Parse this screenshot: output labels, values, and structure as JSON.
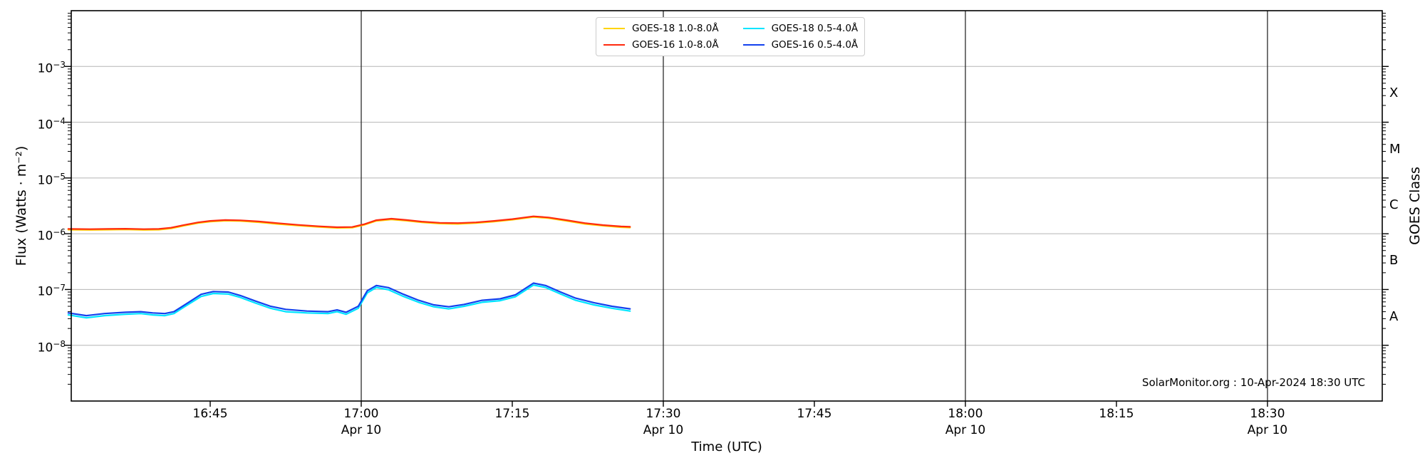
{
  "page": {
    "background": "#ffffff"
  },
  "watermark": "SolarMonitor.org : 10-Apr-2024 18:30 UTC",
  "chart_data": {
    "type": "line",
    "xlabel": "Time (UTC)",
    "ylabel": "Flux (Watts · m⁻²)",
    "ylabel_right": "GOES Class",
    "x_axis": {
      "start_hour_utc": 16.52,
      "end_hour_utc": 18.69,
      "ticks": [
        {
          "hour": 16.75,
          "label": "16:45",
          "sublabel": "",
          "gridline": false
        },
        {
          "hour": 17.0,
          "label": "17:00",
          "sublabel": "Apr 10",
          "gridline": true
        },
        {
          "hour": 17.25,
          "label": "17:15",
          "sublabel": "",
          "gridline": false
        },
        {
          "hour": 17.5,
          "label": "17:30",
          "sublabel": "Apr 10",
          "gridline": true
        },
        {
          "hour": 17.75,
          "label": "17:45",
          "sublabel": "",
          "gridline": false
        },
        {
          "hour": 18.0,
          "label": "18:00",
          "sublabel": "Apr 10",
          "gridline": true
        },
        {
          "hour": 18.25,
          "label": "18:15",
          "sublabel": "",
          "gridline": false
        },
        {
          "hour": 18.5,
          "label": "18:30",
          "sublabel": "Apr 10",
          "gridline": true
        }
      ]
    },
    "y_axis": {
      "scale": "log",
      "min": 1e-09,
      "max": 0.01,
      "tick_exponents": [
        -3,
        -4,
        -5,
        -6,
        -7,
        -8
      ],
      "tick_labels": [
        "10⁻³",
        "10⁻⁴",
        "10⁻⁵",
        "10⁻⁶",
        "10⁻⁷",
        "10⁻⁸"
      ]
    },
    "right_axis_classes": [
      {
        "label": "X",
        "center_exponent": -3.5
      },
      {
        "label": "M",
        "center_exponent": -4.5
      },
      {
        "label": "C",
        "center_exponent": -5.5
      },
      {
        "label": "B",
        "center_exponent": -6.5
      },
      {
        "label": "A",
        "center_exponent": -7.5
      }
    ],
    "grid": {
      "horizontal_color": "#b5b5b5",
      "vertical_color": "#2b2b2b"
    },
    "legend": {
      "items": [
        "GOES-18 1.0-8.0Å",
        "GOES-16 1.0-8.0Å",
        "GOES-18 0.5-4.0Å",
        "GOES-16 0.5-4.0Å"
      ]
    },
    "series": [
      {
        "name": "GOES-18 1.0-8.0Å",
        "color": "#ffd400",
        "points": [
          [
            16.515,
            1.18e-06
          ],
          [
            16.55,
            1.17e-06
          ],
          [
            16.58,
            1.18e-06
          ],
          [
            16.61,
            1.19e-06
          ],
          [
            16.64,
            1.17e-06
          ],
          [
            16.665,
            1.18e-06
          ],
          [
            16.685,
            1.24e-06
          ],
          [
            16.705,
            1.38e-06
          ],
          [
            16.73,
            1.55e-06
          ],
          [
            16.75,
            1.65e-06
          ],
          [
            16.775,
            1.71e-06
          ],
          [
            16.8,
            1.69e-06
          ],
          [
            16.83,
            1.61e-06
          ],
          [
            16.86,
            1.5e-06
          ],
          [
            16.895,
            1.4e-06
          ],
          [
            16.93,
            1.32e-06
          ],
          [
            16.96,
            1.27e-06
          ],
          [
            16.985,
            1.28e-06
          ],
          [
            17.005,
            1.44e-06
          ],
          [
            17.025,
            1.7e-06
          ],
          [
            17.05,
            1.8e-06
          ],
          [
            17.075,
            1.71e-06
          ],
          [
            17.1,
            1.6e-06
          ],
          [
            17.13,
            1.52e-06
          ],
          [
            17.16,
            1.5e-06
          ],
          [
            17.19,
            1.55e-06
          ],
          [
            17.22,
            1.65e-06
          ],
          [
            17.25,
            1.78e-06
          ],
          [
            17.285,
            1.99e-06
          ],
          [
            17.31,
            1.9e-06
          ],
          [
            17.34,
            1.7e-06
          ],
          [
            17.37,
            1.5e-06
          ],
          [
            17.4,
            1.39e-06
          ],
          [
            17.43,
            1.31e-06
          ],
          [
            17.445,
            1.29e-06
          ]
        ]
      },
      {
        "name": "GOES-16 1.0-8.0Å",
        "color": "#ff2a0e",
        "points": [
          [
            16.515,
            1.22e-06
          ],
          [
            16.55,
            1.21e-06
          ],
          [
            16.58,
            1.22e-06
          ],
          [
            16.61,
            1.23e-06
          ],
          [
            16.64,
            1.21e-06
          ],
          [
            16.665,
            1.22e-06
          ],
          [
            16.685,
            1.28e-06
          ],
          [
            16.705,
            1.42e-06
          ],
          [
            16.73,
            1.6e-06
          ],
          [
            16.75,
            1.7e-06
          ],
          [
            16.775,
            1.76e-06
          ],
          [
            16.8,
            1.74e-06
          ],
          [
            16.83,
            1.66e-06
          ],
          [
            16.86,
            1.55e-06
          ],
          [
            16.895,
            1.44e-06
          ],
          [
            16.93,
            1.36e-06
          ],
          [
            16.96,
            1.31e-06
          ],
          [
            16.985,
            1.32e-06
          ],
          [
            17.005,
            1.48e-06
          ],
          [
            17.025,
            1.75e-06
          ],
          [
            17.05,
            1.86e-06
          ],
          [
            17.075,
            1.76e-06
          ],
          [
            17.1,
            1.65e-06
          ],
          [
            17.13,
            1.57e-06
          ],
          [
            17.16,
            1.55e-06
          ],
          [
            17.19,
            1.6e-06
          ],
          [
            17.22,
            1.7e-06
          ],
          [
            17.25,
            1.83e-06
          ],
          [
            17.285,
            2.05e-06
          ],
          [
            17.31,
            1.96e-06
          ],
          [
            17.34,
            1.75e-06
          ],
          [
            17.37,
            1.55e-06
          ],
          [
            17.4,
            1.43e-06
          ],
          [
            17.43,
            1.35e-06
          ],
          [
            17.445,
            1.33e-06
          ]
        ]
      },
      {
        "name": "GOES-18 0.5-4.0Å",
        "color": "#00e5ff",
        "points": [
          [
            16.515,
            3.5e-08
          ],
          [
            16.545,
            3.1e-08
          ],
          [
            16.575,
            3.4e-08
          ],
          [
            16.61,
            3.6e-08
          ],
          [
            16.635,
            3.7e-08
          ],
          [
            16.655,
            3.5e-08
          ],
          [
            16.675,
            3.4e-08
          ],
          [
            16.69,
            3.7e-08
          ],
          [
            16.71,
            5.1e-08
          ],
          [
            16.735,
            7.5e-08
          ],
          [
            16.755,
            8.5e-08
          ],
          [
            16.78,
            8.3e-08
          ],
          [
            16.8,
            7.2e-08
          ],
          [
            16.825,
            5.7e-08
          ],
          [
            16.85,
            4.6e-08
          ],
          [
            16.875,
            4e-08
          ],
          [
            16.91,
            3.8e-08
          ],
          [
            16.945,
            3.7e-08
          ],
          [
            16.96,
            4e-08
          ],
          [
            16.975,
            3.6e-08
          ],
          [
            16.995,
            4.6e-08
          ],
          [
            17.01,
            8.7e-08
          ],
          [
            17.025,
            1.09e-07
          ],
          [
            17.045,
            9.9e-08
          ],
          [
            17.07,
            7.5e-08
          ],
          [
            17.095,
            5.9e-08
          ],
          [
            17.12,
            4.9e-08
          ],
          [
            17.145,
            4.5e-08
          ],
          [
            17.17,
            5e-08
          ],
          [
            17.2,
            5.9e-08
          ],
          [
            17.23,
            6.3e-08
          ],
          [
            17.255,
            7.4e-08
          ],
          [
            17.285,
            1.2e-07
          ],
          [
            17.305,
            1.09e-07
          ],
          [
            17.33,
            8.3e-08
          ],
          [
            17.355,
            6.4e-08
          ],
          [
            17.385,
            5.3e-08
          ],
          [
            17.415,
            4.6e-08
          ],
          [
            17.445,
            4.1e-08
          ]
        ]
      },
      {
        "name": "GOES-16 0.5-4.0Å",
        "color": "#1341ee",
        "points": [
          [
            16.515,
            3.8e-08
          ],
          [
            16.545,
            3.4e-08
          ],
          [
            16.575,
            3.7e-08
          ],
          [
            16.61,
            3.9e-08
          ],
          [
            16.635,
            4e-08
          ],
          [
            16.655,
            3.8e-08
          ],
          [
            16.675,
            3.7e-08
          ],
          [
            16.69,
            4e-08
          ],
          [
            16.71,
            5.5e-08
          ],
          [
            16.735,
            8.2e-08
          ],
          [
            16.755,
            9.2e-08
          ],
          [
            16.78,
            9e-08
          ],
          [
            16.8,
            7.8e-08
          ],
          [
            16.825,
            6.2e-08
          ],
          [
            16.85,
            5e-08
          ],
          [
            16.875,
            4.4e-08
          ],
          [
            16.91,
            4.1e-08
          ],
          [
            16.945,
            4e-08
          ],
          [
            16.96,
            4.3e-08
          ],
          [
            16.975,
            3.9e-08
          ],
          [
            16.995,
            5e-08
          ],
          [
            17.01,
            9.5e-08
          ],
          [
            17.025,
            1.18e-07
          ],
          [
            17.045,
            1.08e-07
          ],
          [
            17.07,
            8.2e-08
          ],
          [
            17.095,
            6.4e-08
          ],
          [
            17.12,
            5.3e-08
          ],
          [
            17.145,
            4.9e-08
          ],
          [
            17.17,
            5.4e-08
          ],
          [
            17.2,
            6.4e-08
          ],
          [
            17.23,
            6.8e-08
          ],
          [
            17.255,
            8e-08
          ],
          [
            17.285,
            1.3e-07
          ],
          [
            17.305,
            1.18e-07
          ],
          [
            17.33,
            9e-08
          ],
          [
            17.355,
            7e-08
          ],
          [
            17.385,
            5.8e-08
          ],
          [
            17.415,
            5e-08
          ],
          [
            17.445,
            4.5e-08
          ]
        ]
      }
    ]
  }
}
